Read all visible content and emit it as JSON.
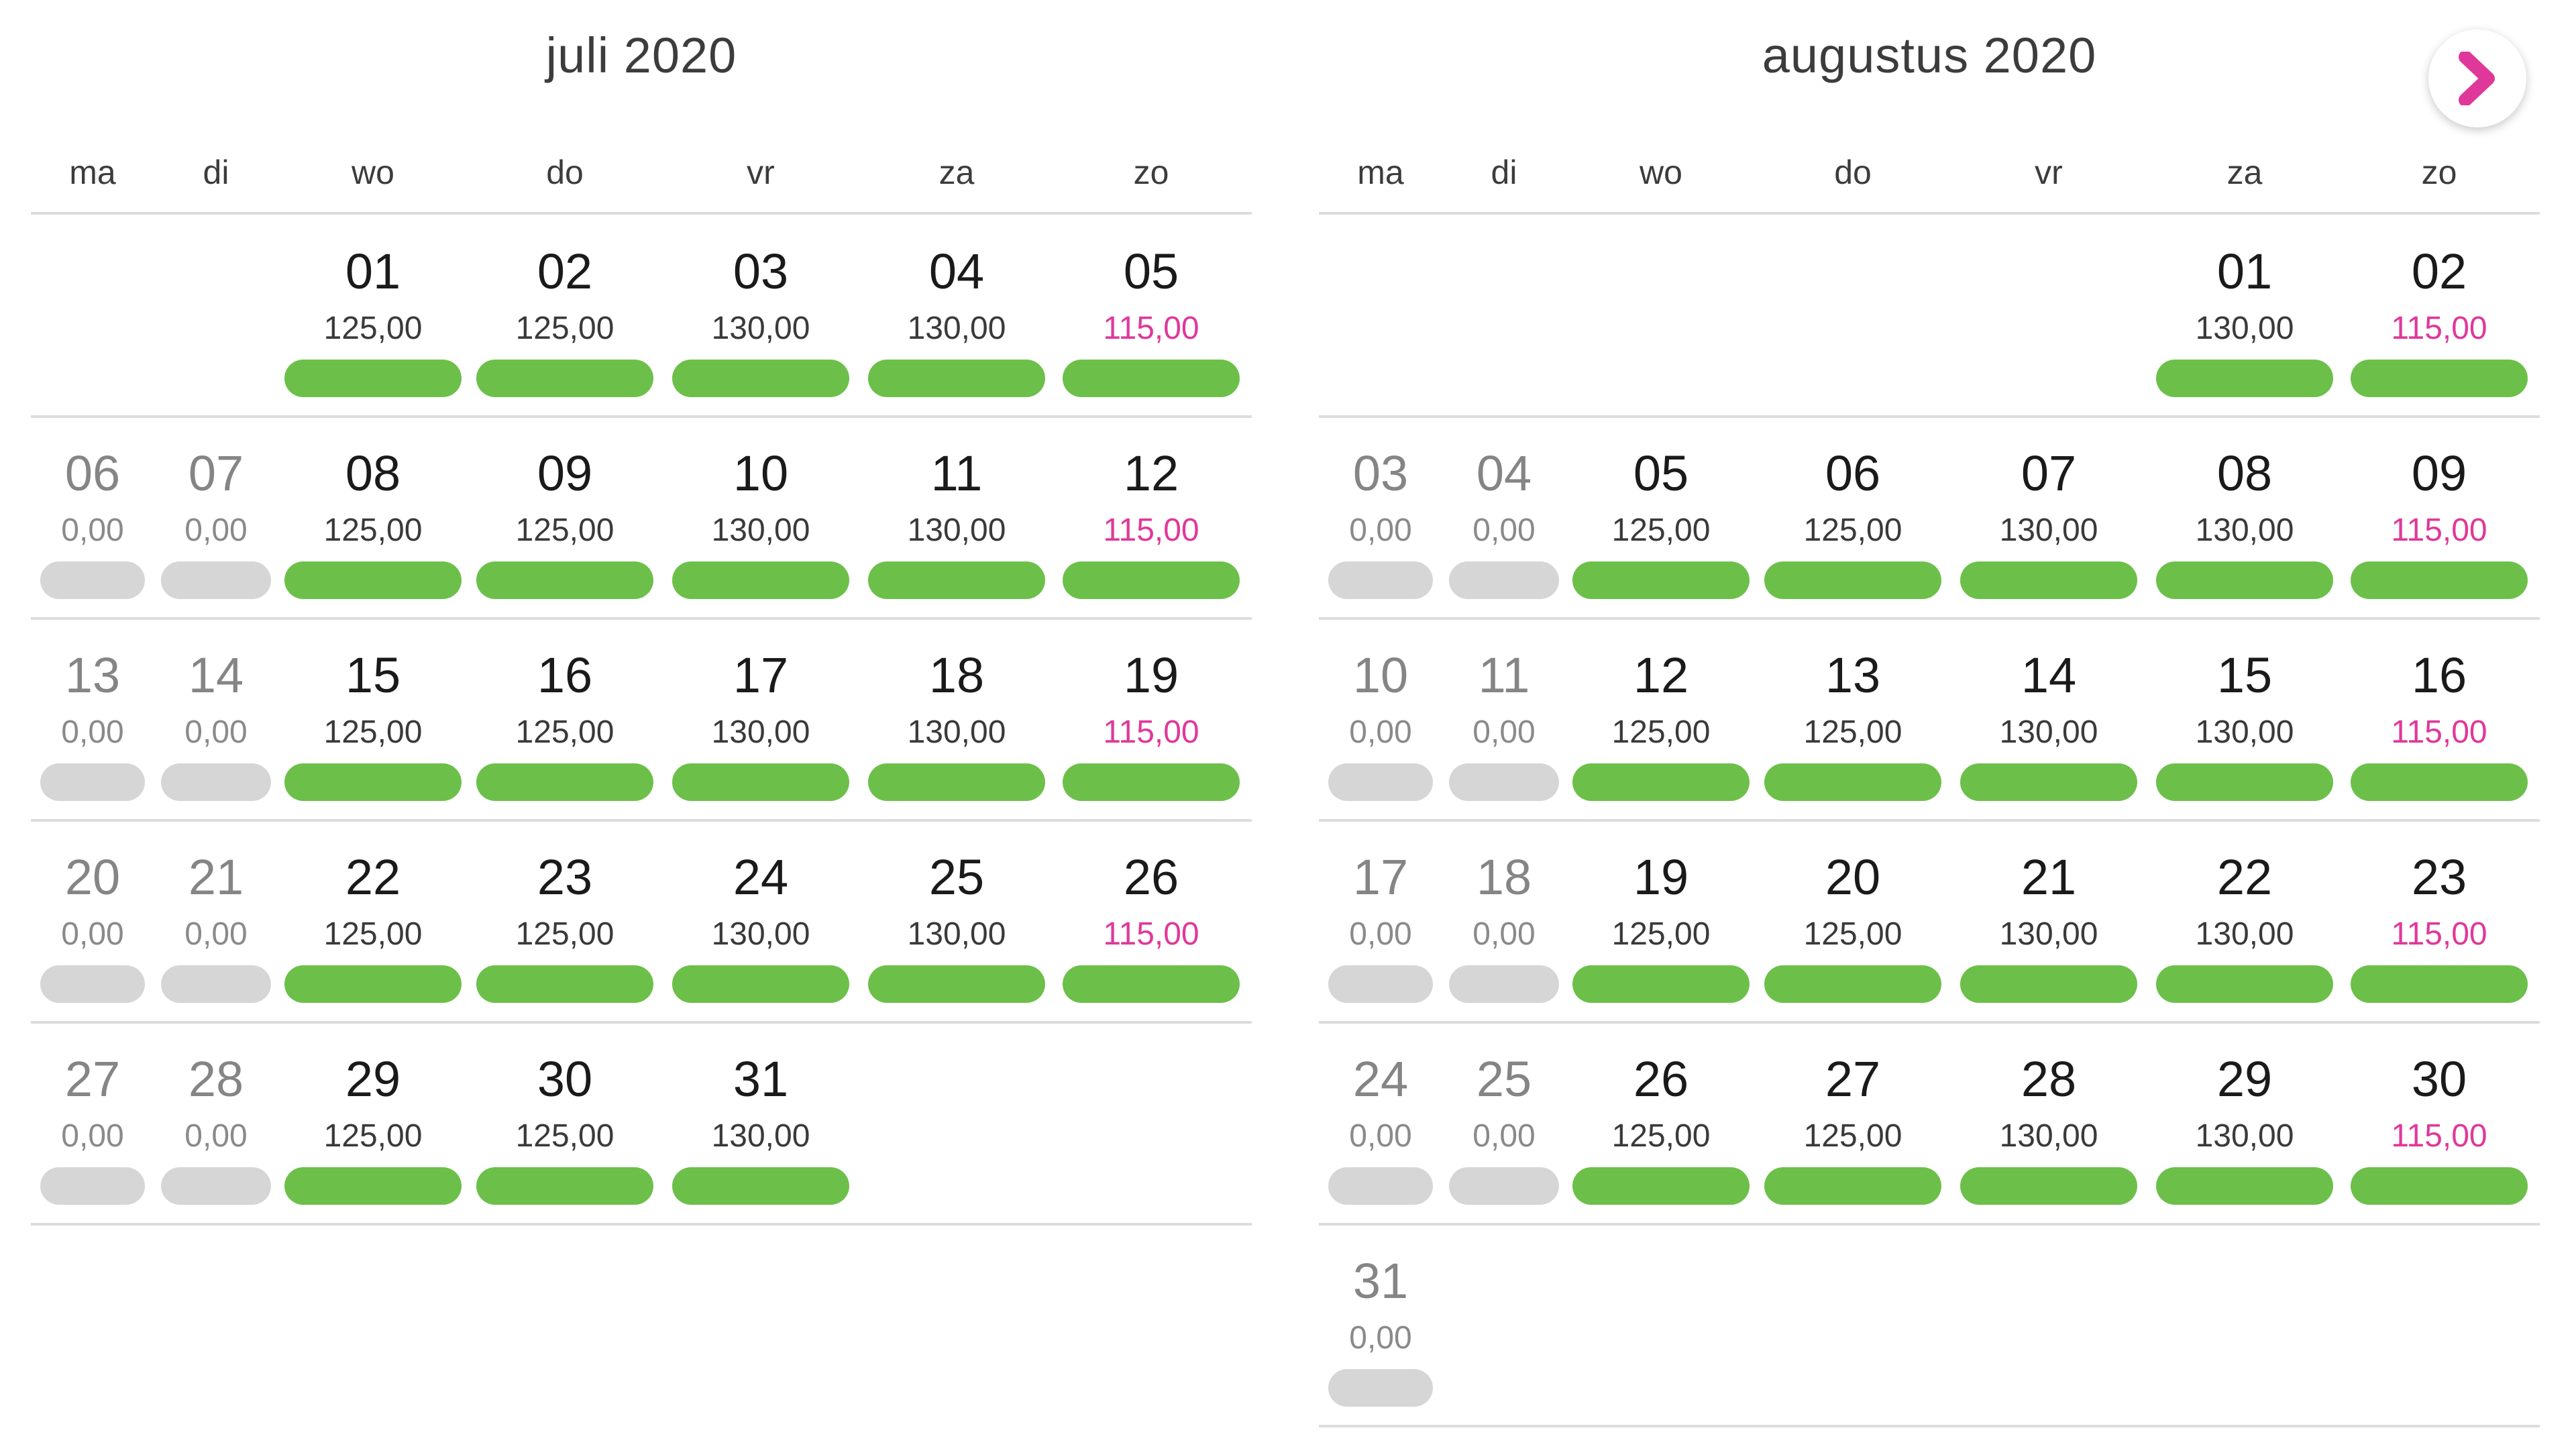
{
  "navigation": {
    "next_icon": "chevron-right-icon",
    "icon_color": "#e0389a"
  },
  "colors": {
    "available": "#6cc04a",
    "unavailable": "#d6d6d6",
    "weekend_price": "#e0389a"
  },
  "weekdays": [
    "ma",
    "di",
    "wo",
    "do",
    "vr",
    "za",
    "zo"
  ],
  "months": [
    {
      "title": "juli 2020",
      "weeks": [
        [
          null,
          null,
          {
            "day": "01",
            "price": "125,00",
            "state": "available"
          },
          {
            "day": "02",
            "price": "125,00",
            "state": "available"
          },
          {
            "day": "03",
            "price": "130,00",
            "state": "available"
          },
          {
            "day": "04",
            "price": "130,00",
            "state": "available"
          },
          {
            "day": "05",
            "price": "115,00",
            "state": "available"
          }
        ],
        [
          {
            "day": "06",
            "price": "0,00",
            "state": "unavailable"
          },
          {
            "day": "07",
            "price": "0,00",
            "state": "unavailable"
          },
          {
            "day": "08",
            "price": "125,00",
            "state": "available"
          },
          {
            "day": "09",
            "price": "125,00",
            "state": "available"
          },
          {
            "day": "10",
            "price": "130,00",
            "state": "available"
          },
          {
            "day": "11",
            "price": "130,00",
            "state": "available"
          },
          {
            "day": "12",
            "price": "115,00",
            "state": "available"
          }
        ],
        [
          {
            "day": "13",
            "price": "0,00",
            "state": "unavailable"
          },
          {
            "day": "14",
            "price": "0,00",
            "state": "unavailable"
          },
          {
            "day": "15",
            "price": "125,00",
            "state": "available"
          },
          {
            "day": "16",
            "price": "125,00",
            "state": "available"
          },
          {
            "day": "17",
            "price": "130,00",
            "state": "available"
          },
          {
            "day": "18",
            "price": "130,00",
            "state": "available"
          },
          {
            "day": "19",
            "price": "115,00",
            "state": "available"
          }
        ],
        [
          {
            "day": "20",
            "price": "0,00",
            "state": "unavailable"
          },
          {
            "day": "21",
            "price": "0,00",
            "state": "unavailable"
          },
          {
            "day": "22",
            "price": "125,00",
            "state": "available"
          },
          {
            "day": "23",
            "price": "125,00",
            "state": "available"
          },
          {
            "day": "24",
            "price": "130,00",
            "state": "available"
          },
          {
            "day": "25",
            "price": "130,00",
            "state": "available"
          },
          {
            "day": "26",
            "price": "115,00",
            "state": "available"
          }
        ],
        [
          {
            "day": "27",
            "price": "0,00",
            "state": "unavailable"
          },
          {
            "day": "28",
            "price": "0,00",
            "state": "unavailable"
          },
          {
            "day": "29",
            "price": "125,00",
            "state": "available"
          },
          {
            "day": "30",
            "price": "125,00",
            "state": "available"
          },
          {
            "day": "31",
            "price": "130,00",
            "state": "available"
          },
          null,
          null
        ]
      ]
    },
    {
      "title": "augustus 2020",
      "weeks": [
        [
          null,
          null,
          null,
          null,
          null,
          {
            "day": "01",
            "price": "130,00",
            "state": "available"
          },
          {
            "day": "02",
            "price": "115,00",
            "state": "available"
          }
        ],
        [
          {
            "day": "03",
            "price": "0,00",
            "state": "unavailable"
          },
          {
            "day": "04",
            "price": "0,00",
            "state": "unavailable"
          },
          {
            "day": "05",
            "price": "125,00",
            "state": "available"
          },
          {
            "day": "06",
            "price": "125,00",
            "state": "available"
          },
          {
            "day": "07",
            "price": "130,00",
            "state": "available"
          },
          {
            "day": "08",
            "price": "130,00",
            "state": "available"
          },
          {
            "day": "09",
            "price": "115,00",
            "state": "available"
          }
        ],
        [
          {
            "day": "10",
            "price": "0,00",
            "state": "unavailable"
          },
          {
            "day": "11",
            "price": "0,00",
            "state": "unavailable"
          },
          {
            "day": "12",
            "price": "125,00",
            "state": "available"
          },
          {
            "day": "13",
            "price": "125,00",
            "state": "available"
          },
          {
            "day": "14",
            "price": "130,00",
            "state": "available"
          },
          {
            "day": "15",
            "price": "130,00",
            "state": "available"
          },
          {
            "day": "16",
            "price": "115,00",
            "state": "available"
          }
        ],
        [
          {
            "day": "17",
            "price": "0,00",
            "state": "unavailable"
          },
          {
            "day": "18",
            "price": "0,00",
            "state": "unavailable"
          },
          {
            "day": "19",
            "price": "125,00",
            "state": "available"
          },
          {
            "day": "20",
            "price": "125,00",
            "state": "available"
          },
          {
            "day": "21",
            "price": "130,00",
            "state": "available"
          },
          {
            "day": "22",
            "price": "130,00",
            "state": "available"
          },
          {
            "day": "23",
            "price": "115,00",
            "state": "available"
          }
        ],
        [
          {
            "day": "24",
            "price": "0,00",
            "state": "unavailable"
          },
          {
            "day": "25",
            "price": "0,00",
            "state": "unavailable"
          },
          {
            "day": "26",
            "price": "125,00",
            "state": "available"
          },
          {
            "day": "27",
            "price": "125,00",
            "state": "available"
          },
          {
            "day": "28",
            "price": "130,00",
            "state": "available"
          },
          {
            "day": "29",
            "price": "130,00",
            "state": "available"
          },
          {
            "day": "30",
            "price": "115,00",
            "state": "available"
          }
        ],
        [
          {
            "day": "31",
            "price": "0,00",
            "state": "unavailable"
          },
          null,
          null,
          null,
          null,
          null,
          null
        ]
      ]
    }
  ]
}
